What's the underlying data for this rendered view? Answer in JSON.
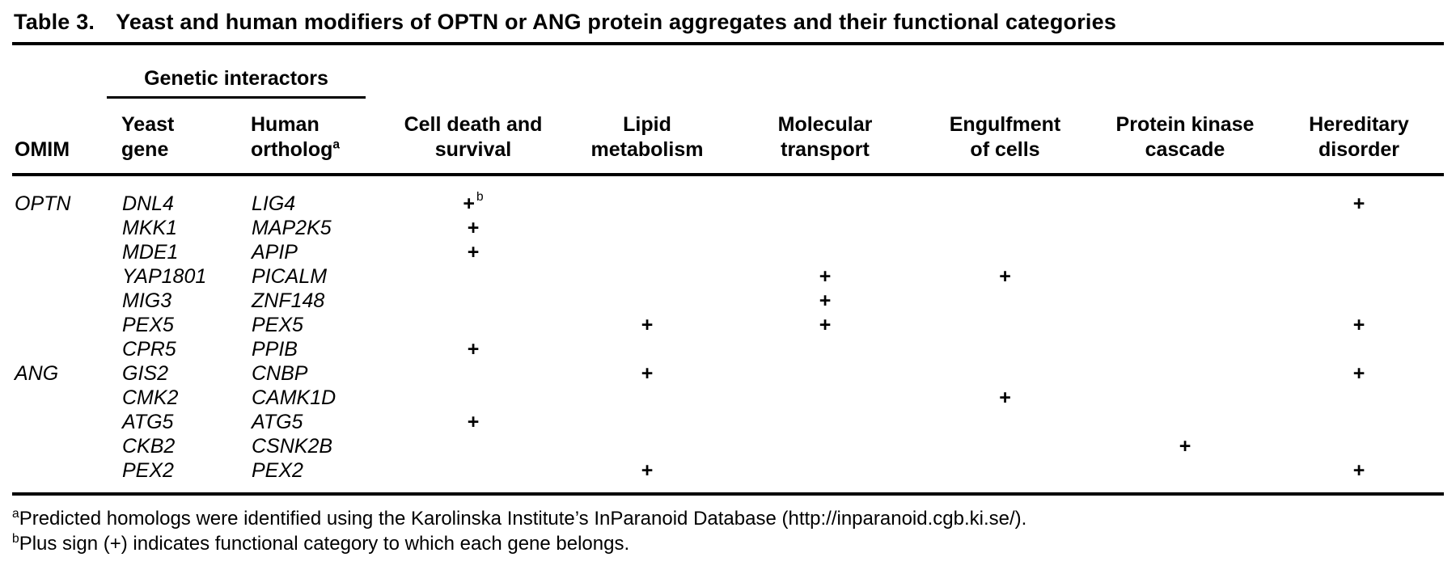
{
  "caption": {
    "label": "Table 3.",
    "text": "Yeast and human modifiers of OPTN or ANG protein aggregates and their functional categories"
  },
  "table": {
    "group_header": "Genetic interactors",
    "columns": [
      {
        "id": "omim",
        "label": "OMIM"
      },
      {
        "id": "yeast_gene",
        "label": "Yeast\ngene"
      },
      {
        "id": "human_ortholog",
        "label": "Human\northolog^a"
      },
      {
        "id": "cell_death_and_survival",
        "label": "Cell death and\nsurvival"
      },
      {
        "id": "lipid_metabolism",
        "label": "Lipid\nmetabolism"
      },
      {
        "id": "molecular_transport",
        "label": "Molecular\ntransport"
      },
      {
        "id": "engulfment_of_cells",
        "label": "Engulfment\nof cells"
      },
      {
        "id": "protein_kinase_cascade",
        "label": "Protein kinase\ncascade"
      },
      {
        "id": "hereditary_disorder",
        "label": "Hereditary\ndisorder"
      }
    ],
    "rows": [
      {
        "cells": [
          "OPTN",
          "DNL4",
          "LIG4",
          "+^b",
          "",
          "",
          "",
          "",
          "+"
        ]
      },
      {
        "cells": [
          "",
          "MKK1",
          "MAP2K5",
          "+",
          "",
          "",
          "",
          "",
          ""
        ]
      },
      {
        "cells": [
          "",
          "MDE1",
          "APIP",
          "+",
          "",
          "",
          "",
          "",
          ""
        ]
      },
      {
        "cells": [
          "",
          "YAP1801",
          "PICALM",
          "",
          "",
          "+",
          "+",
          "",
          ""
        ]
      },
      {
        "cells": [
          "",
          "MIG3",
          "ZNF148",
          "",
          "",
          "+",
          "",
          "",
          ""
        ]
      },
      {
        "cells": [
          "",
          "PEX5",
          "PEX5",
          "",
          "+",
          "+",
          "",
          "",
          "+"
        ]
      },
      {
        "cells": [
          "",
          "CPR5",
          "PPIB",
          "+",
          "",
          "",
          "",
          "",
          ""
        ]
      },
      {
        "cells": [
          "ANG",
          "GIS2",
          "CNBP",
          "",
          "+",
          "",
          "",
          "",
          "+"
        ]
      },
      {
        "cells": [
          "",
          "CMK2",
          "CAMK1D",
          "",
          "",
          "",
          "+",
          "",
          ""
        ]
      },
      {
        "cells": [
          "",
          "ATG5",
          "ATG5",
          "+",
          "",
          "",
          "",
          "",
          ""
        ]
      },
      {
        "cells": [
          "",
          "CKB2",
          "CSNK2B",
          "",
          "",
          "",
          "",
          "+",
          ""
        ]
      },
      {
        "cells": [
          "",
          "PEX2",
          "PEX2",
          "",
          "+",
          "",
          "",
          "",
          "+"
        ]
      }
    ]
  },
  "footnotes": [
    {
      "marker": "a",
      "text": "Predicted homologs were identified using the Karolinska Institute’s InParanoid Database (http://inparanoid.cgb.ki.se/)."
    },
    {
      "marker": "b",
      "text": "Plus sign (+) indicates functional category to which each gene belongs."
    }
  ]
}
